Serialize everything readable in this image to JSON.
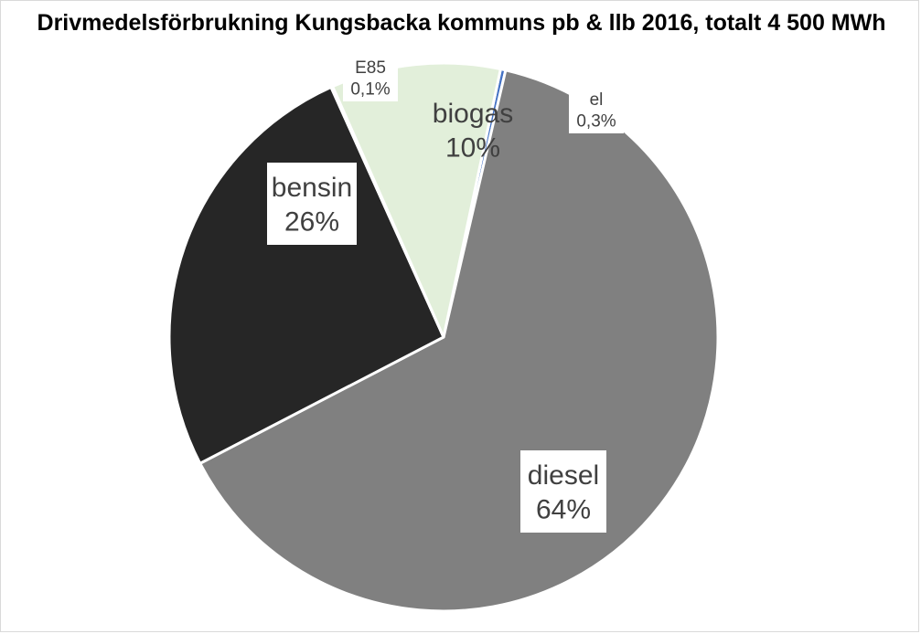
{
  "chart_data": {
    "type": "pie",
    "title": "Drivmedelsförbrukning Kungsbacka kommuns pb & llb 2016, totalt 4 500 MWh",
    "start_angle_deg": 12,
    "slices": [
      {
        "name": "el",
        "value": 0.3,
        "label": "0,3%",
        "color": "#4472c4"
      },
      {
        "name": "diesel",
        "value": 64,
        "label": "64%",
        "color": "#808080"
      },
      {
        "name": "bensin",
        "value": 26,
        "label": "26%",
        "color": "#262626"
      },
      {
        "name": "E85",
        "value": 0.1,
        "label": "0,1%",
        "color": "#ffffff"
      },
      {
        "name": "biogas",
        "value": 10,
        "label": "10%",
        "color": "#e2efda"
      }
    ]
  }
}
